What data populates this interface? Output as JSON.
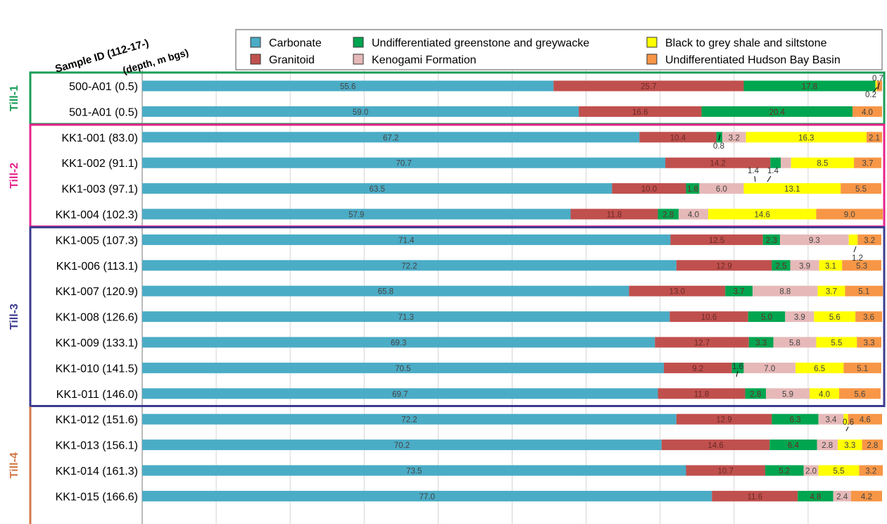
{
  "chart_data": {
    "type": "bar",
    "orientation": "horizontal",
    "stacked": true,
    "xlim": [
      0,
      100
    ],
    "grid": true,
    "legend_position": "top-right",
    "header": {
      "line1": "Sample ID (112-17-)",
      "line2": "(depth, m bgs)"
    },
    "series": [
      {
        "name": "Carbonate",
        "color": "#4bacc6",
        "values": [
          55.6,
          59.0,
          67.2,
          70.7,
          63.5,
          57.9,
          71.4,
          72.2,
          65.8,
          71.3,
          69.3,
          70.5,
          69.7,
          72.2,
          70.2,
          73.5,
          77.0
        ]
      },
      {
        "name": "Granitoid",
        "color": "#c0504d",
        "values": [
          25.7,
          16.6,
          10.4,
          14.2,
          10.0,
          11.8,
          12.5,
          12.9,
          13.0,
          10.6,
          12.7,
          9.2,
          11.8,
          12.9,
          14.6,
          10.7,
          11.6
        ]
      },
      {
        "name": "Undifferentiated greenstone and greywacke",
        "color": "#00a550",
        "values": [
          17.8,
          20.4,
          0.8,
          1.4,
          1.8,
          2.8,
          2.3,
          2.5,
          3.7,
          5.0,
          3.3,
          1.6,
          2.8,
          6.3,
          6.4,
          5.2,
          4.8
        ]
      },
      {
        "name": "Kenogami Formation",
        "color": "#e6b9b8",
        "values": [
          0,
          0,
          3.2,
          1.4,
          6.0,
          4.0,
          9.3,
          3.9,
          8.8,
          3.9,
          5.8,
          7.0,
          5.9,
          3.4,
          2.8,
          2.0,
          2.4
        ]
      },
      {
        "name": "Black to grey shale and siltstone",
        "color": "#ffff00",
        "values": [
          0.2,
          0,
          16.3,
          8.5,
          13.1,
          14.6,
          1.2,
          3.1,
          3.7,
          5.6,
          5.5,
          6.5,
          4.0,
          0.6,
          3.3,
          5.5,
          0
        ]
      },
      {
        "name": "Undifferentiated Hudson Bay Basin",
        "color": "#f79646",
        "values": [
          0.7,
          4.0,
          2.1,
          3.7,
          5.5,
          9.0,
          3.2,
          5.3,
          5.1,
          3.6,
          3.3,
          5.1,
          5.6,
          4.6,
          2.8,
          3.2,
          4.2
        ]
      }
    ],
    "rows": [
      {
        "label": "500-A01 (0.5)",
        "labels": [
          "55.6",
          "25.7",
          "17.8",
          "",
          "",
          ""
        ]
      },
      {
        "label": "501-A01 (0.5)",
        "labels": [
          "59.0",
          "16.6",
          "20.4",
          "",
          "",
          "4.0"
        ]
      },
      {
        "label": "KK1-001 (83.0)",
        "labels": [
          "67.2",
          "10.4",
          "",
          "3.2",
          "16.3",
          "2.1"
        ]
      },
      {
        "label": "KK1-002 (91.1)",
        "labels": [
          "70.7",
          "14.2",
          "",
          "",
          "8.5",
          "3.7"
        ]
      },
      {
        "label": "KK1-003 (97.1)",
        "labels": [
          "63.5",
          "10.0",
          "1.8",
          "6.0",
          "13.1",
          "5.5"
        ]
      },
      {
        "label": "KK1-004 (102.3)",
        "labels": [
          "57.9",
          "11.8",
          "2.8",
          "4.0",
          "14.6",
          "9.0"
        ]
      },
      {
        "label": "KK1-005 (107.3)",
        "labels": [
          "71.4",
          "12.5",
          "2.3",
          "9.3",
          "",
          "3.2"
        ]
      },
      {
        "label": "KK1-006 (113.1)",
        "labels": [
          "72.2",
          "12.9",
          "2.5",
          "3.9",
          "3.1",
          "5.3"
        ]
      },
      {
        "label": "KK1-007 (120.9)",
        "labels": [
          "65.8",
          "13.0",
          "3.7",
          "8.8",
          "3.7",
          "5.1"
        ]
      },
      {
        "label": "KK1-008 (126.6)",
        "labels": [
          "71.3",
          "10.6",
          "5.0",
          "3.9",
          "5.6",
          "3.6"
        ]
      },
      {
        "label": "KK1-009 (133.1)",
        "labels": [
          "69.3",
          "12.7",
          "3.3",
          "5.8",
          "5.5",
          "3.3"
        ]
      },
      {
        "label": "KK1-010 (141.5)",
        "labels": [
          "70.5",
          "9.2",
          "",
          "7.0",
          "6.5",
          "5.1"
        ]
      },
      {
        "label": "KK1-011 (146.0)",
        "labels": [
          "69.7",
          "11.8",
          "2.8",
          "5.9",
          "4.0",
          "5.6"
        ]
      },
      {
        "label": "KK1-012 (151.6)",
        "labels": [
          "72.2",
          "12.9",
          "6.3",
          "3.4",
          "",
          "4.6"
        ]
      },
      {
        "label": "KK1-013 (156.1)",
        "labels": [
          "70.2",
          "14.6",
          "6.4",
          "2.8",
          "3.3",
          "2.8"
        ]
      },
      {
        "label": "KK1-014 (161.3)",
        "labels": [
          "73.5",
          "10.7",
          "5.2",
          "2.0",
          "5.5",
          "3.2"
        ]
      },
      {
        "label": "KK1-015 (166.6)",
        "labels": [
          "77.0",
          "11.6",
          "4.8",
          "2.4",
          "",
          "4.2"
        ]
      }
    ],
    "callouts": [
      {
        "row": 0,
        "text": "0.7"
      },
      {
        "row": 0,
        "text": "0.2"
      },
      {
        "row": 2,
        "text": "0.8"
      },
      {
        "row": 3,
        "text": "1.4"
      },
      {
        "row": 3,
        "text": "1.4"
      },
      {
        "row": 6,
        "text": "1.2"
      },
      {
        "row": 11,
        "text": "1.6"
      },
      {
        "row": 13,
        "text": "0.6"
      }
    ],
    "groups": [
      {
        "name": "Till-1",
        "color": "#1a9e57",
        "rows": [
          0,
          1
        ]
      },
      {
        "name": "Till-2",
        "color": "#e6248b",
        "rows": [
          2,
          5
        ]
      },
      {
        "name": "Till-3",
        "color": "#3b3b8f",
        "rows": [
          6,
          12
        ]
      },
      {
        "name": "Till-4",
        "color": "#d2794a",
        "rows": [
          13,
          16
        ]
      }
    ]
  }
}
